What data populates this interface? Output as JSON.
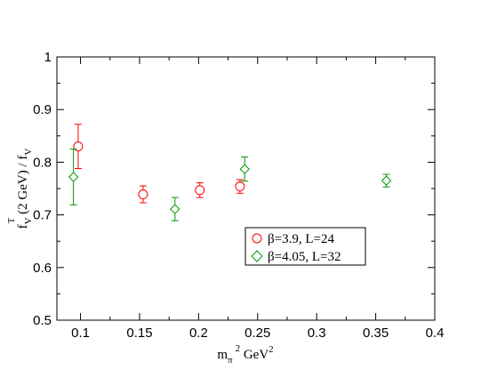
{
  "chart_data": {
    "type": "scatter",
    "xlim": [
      0.08,
      0.4
    ],
    "ylim": [
      0.5,
      1.0
    ],
    "x_ticks": [
      "0.1",
      "0.15",
      "0.2",
      "0.25",
      "0.3",
      "0.35",
      "0.4"
    ],
    "y_ticks": [
      "0.5",
      "0.6",
      "0.7",
      "0.8",
      "0.9",
      "1"
    ],
    "xlabel": {
      "base": "m",
      "sub1": "π",
      "sup1": "2",
      "rest": " GeV",
      "sup2": "2"
    },
    "ylabel": {
      "base": "f",
      "sub1": "V",
      "sup1": "T",
      "mid": " (2 GeV) / f",
      "sub2": "V"
    },
    "legend_position": "center-right",
    "grid": false,
    "series": [
      {
        "name": "β=3.9, L=24",
        "marker": "circle",
        "color": "#ff0000",
        "points": [
          {
            "x": 0.098,
            "y": 0.83,
            "err": 0.042
          },
          {
            "x": 0.153,
            "y": 0.739,
            "err": 0.016
          },
          {
            "x": 0.201,
            "y": 0.747,
            "err": 0.014
          },
          {
            "x": 0.235,
            "y": 0.754,
            "err": 0.013
          }
        ]
      },
      {
        "name": "β=4.05, L=32",
        "marker": "diamond",
        "color": "#009900",
        "points": [
          {
            "x": 0.094,
            "y": 0.772,
            "err": 0.053
          },
          {
            "x": 0.18,
            "y": 0.711,
            "err": 0.022
          },
          {
            "x": 0.239,
            "y": 0.787,
            "err": 0.023
          },
          {
            "x": 0.359,
            "y": 0.765,
            "err": 0.012
          }
        ]
      }
    ]
  }
}
